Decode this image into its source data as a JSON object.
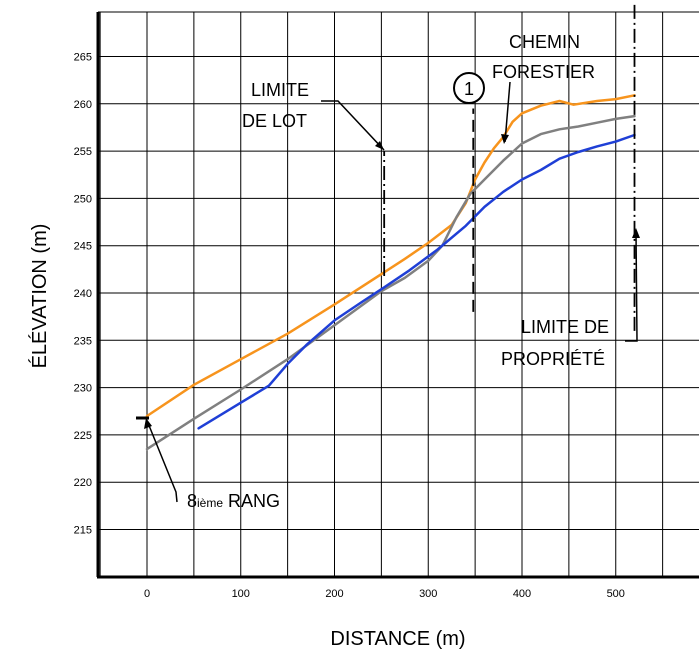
{
  "chart_data": {
    "type": "line",
    "title": "",
    "xlabel": "DISTANCE (m)",
    "ylabel": "ÉLÉVATION (m)",
    "xlim": [
      -50,
      580
    ],
    "ylim": [
      211,
      272
    ],
    "xticks": [
      0,
      100,
      200,
      300,
      400,
      500
    ],
    "yticks": [
      215,
      220,
      225,
      230,
      235,
      240,
      245,
      250,
      255,
      260,
      265
    ],
    "grid": true,
    "legend": "none",
    "series": [
      {
        "color": "#f7941d",
        "x": [
          0,
          50,
          100,
          150,
          200,
          250,
          275,
          300,
          325,
          340,
          350,
          360,
          370,
          380,
          390,
          400,
          420,
          440,
          455,
          480,
          500,
          520
        ],
        "y": [
          227,
          230.3,
          233,
          235.7,
          238.8,
          242,
          243.6,
          245.3,
          247.2,
          249.5,
          252,
          253.8,
          255.3,
          256.5,
          258.1,
          259,
          259.8,
          260.3,
          259.9,
          260.3,
          260.5,
          260.9
        ]
      },
      {
        "color": "#808080",
        "x": [
          0,
          50,
          100,
          150,
          200,
          250,
          275,
          300,
          315,
          330,
          345,
          360,
          380,
          400,
          420,
          440,
          460,
          480,
          500,
          520
        ],
        "y": [
          223.5,
          226.7,
          229.8,
          233,
          236.6,
          240.2,
          241.6,
          243.4,
          245,
          248,
          250.5,
          252,
          254,
          255.8,
          256.8,
          257.3,
          257.6,
          258,
          258.4,
          258.7
        ]
      },
      {
        "color": "#1f3fd6",
        "x": [
          55,
          100,
          130,
          150,
          170,
          200,
          230,
          250,
          280,
          310,
          340,
          360,
          380,
          400,
          420,
          440,
          460,
          480,
          500,
          520
        ],
        "y": [
          225.7,
          228.4,
          230.2,
          232.5,
          234.5,
          237.1,
          239.1,
          240.4,
          242.4,
          244.6,
          247.1,
          249.1,
          250.7,
          252,
          253,
          254.2,
          254.9,
          255.5,
          256,
          256.7
        ]
      }
    ],
    "vertical_markers": [
      {
        "x": 253,
        "y_from": 241.8,
        "y_to": 255,
        "style": "dashdot"
      },
      {
        "x": 348,
        "y_from": 238,
        "y_to": 259.5,
        "style": "dashed"
      },
      {
        "x": 520,
        "y_from": 236,
        "y_to": 270.5,
        "style": "dashdot"
      }
    ],
    "annotations": [
      {
        "text": [
          "LIMITE",
          "DE LOT"
        ]
      },
      {
        "text": [
          "CHEMIN",
          "FORESTIER"
        ]
      },
      {
        "text": [
          "LIMITE DE",
          "PROPRIÉTÉ"
        ]
      },
      {
        "text": [
          "1"
        ]
      },
      {
        "text": [
          "8",
          "ième",
          " RANG"
        ]
      }
    ]
  }
}
